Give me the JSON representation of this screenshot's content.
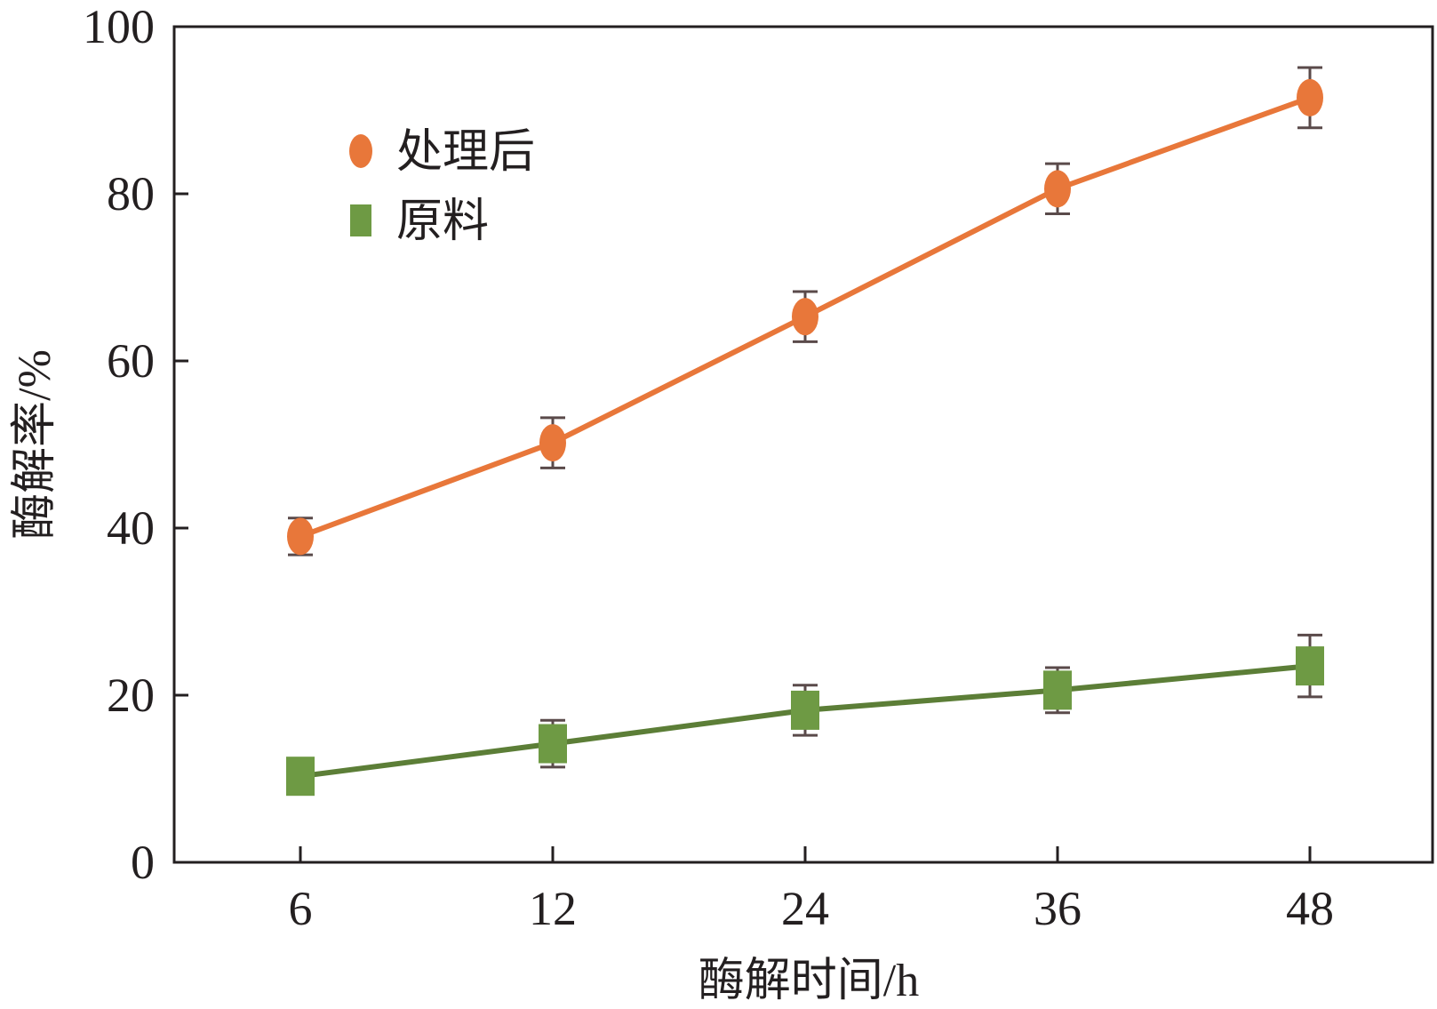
{
  "chart_data": {
    "type": "line",
    "title": "",
    "xlabel": "酶解时间/h",
    "ylabel": "酶解率/%",
    "categories": [
      "6",
      "12",
      "24",
      "36",
      "48"
    ],
    "ylim": [
      0,
      100
    ],
    "yticks": [
      0,
      20,
      40,
      60,
      80,
      100
    ],
    "grid": false,
    "legend_position": "top-left",
    "series": [
      {
        "name": "处理后",
        "marker": "circle",
        "color": "#e8773a",
        "values": [
          39.0,
          50.2,
          65.3,
          80.6,
          91.5
        ],
        "errors": [
          2.2,
          3.0,
          3.0,
          3.0,
          3.6
        ]
      },
      {
        "name": "原料",
        "marker": "square",
        "color": "#6e9a44",
        "line_color": "#5c7e37",
        "values": [
          10.3,
          14.2,
          18.2,
          20.6,
          23.5
        ],
        "errors": [
          0,
          2.8,
          3.0,
          2.7,
          3.7
        ]
      }
    ],
    "errorbar_color": "#5a4a4a",
    "axis_color": "#231f20"
  }
}
